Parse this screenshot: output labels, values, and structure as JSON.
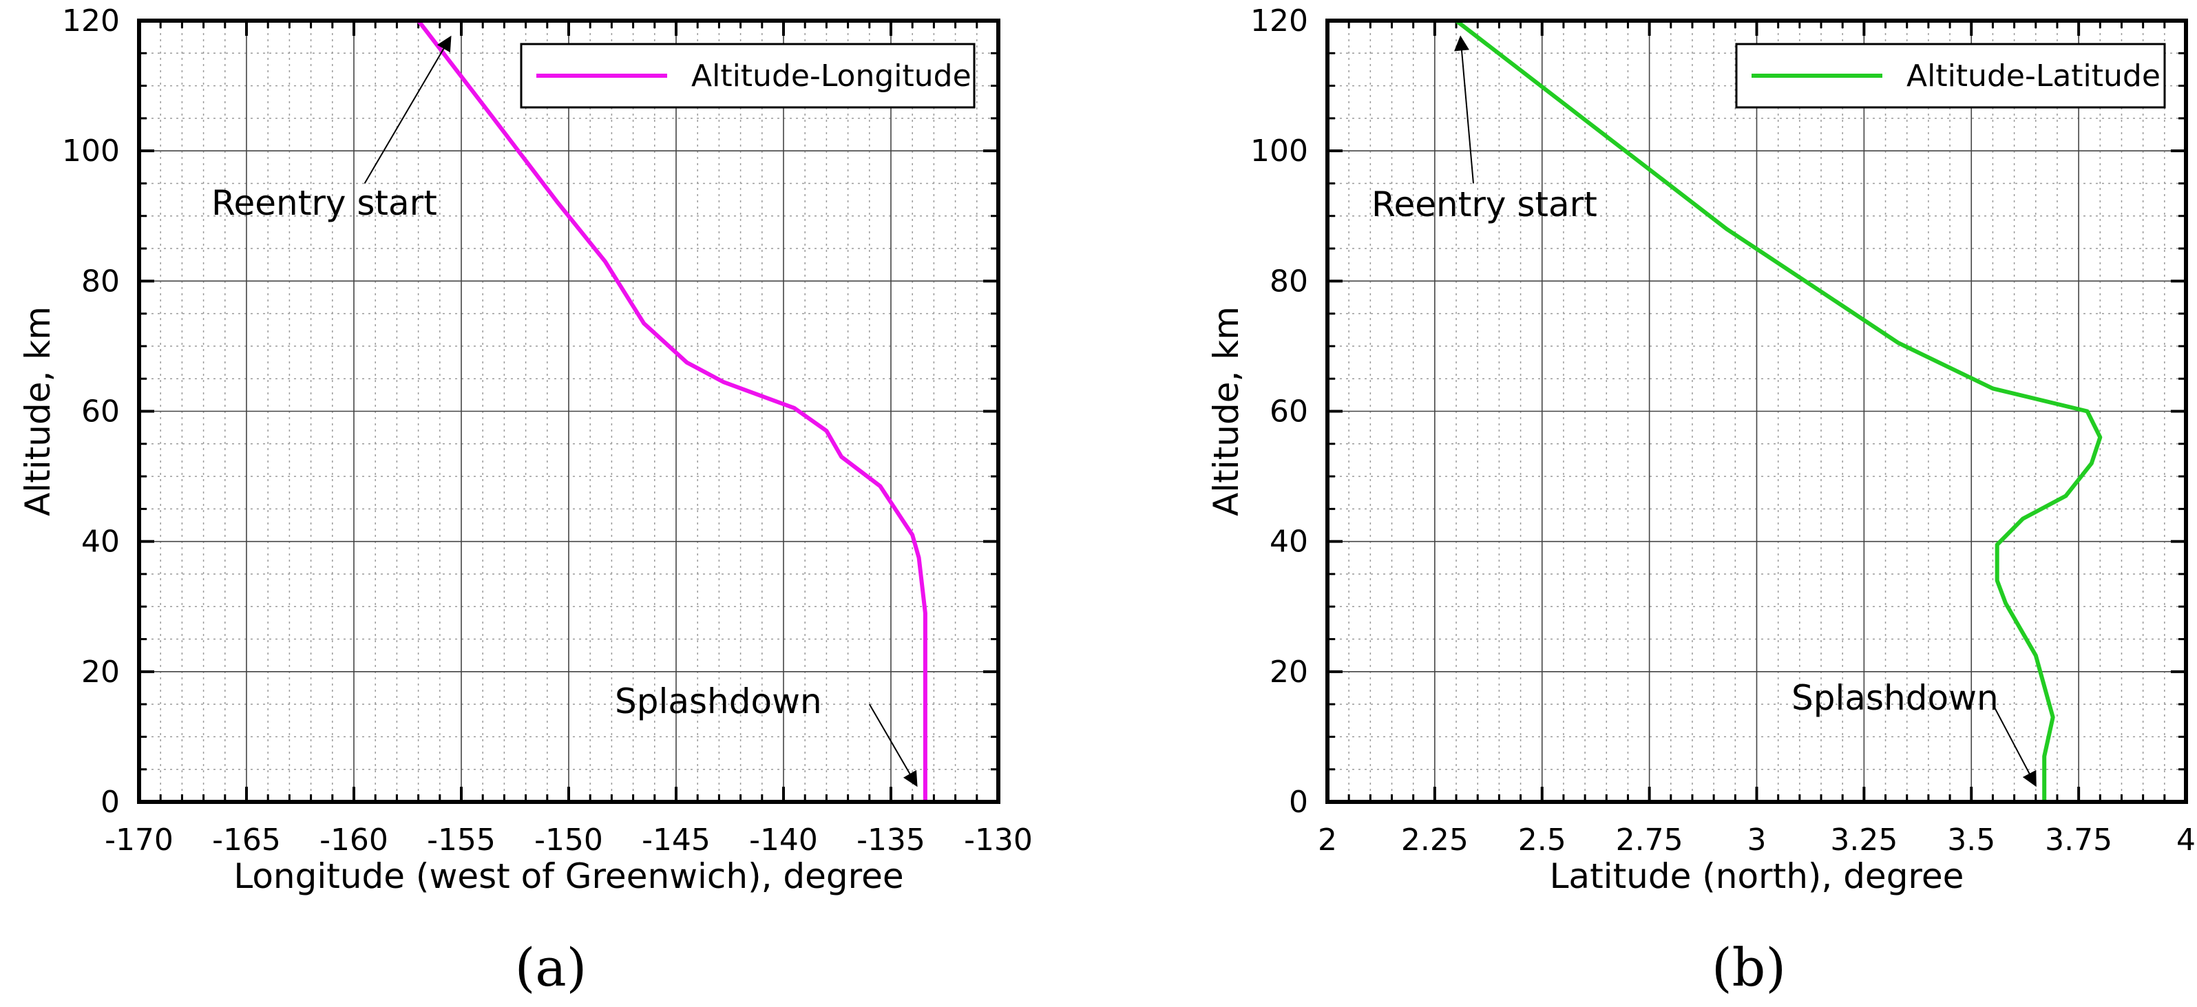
{
  "chart_data": [
    {
      "type": "line",
      "panel_label": "(a)",
      "xlabel": "Longitude (west of Greenwich), degree",
      "ylabel": "Altitude, km",
      "xlim": [
        -170,
        -130
      ],
      "ylim": [
        0,
        120
      ],
      "x_ticks": [
        -170,
        -165,
        -160,
        -155,
        -150,
        -145,
        -140,
        -135,
        -130
      ],
      "x_tick_labels": [
        "-170",
        "-165",
        "-160",
        "-155",
        "-150",
        "-145",
        "-140",
        "-135",
        "-130"
      ],
      "y_ticks": [
        0,
        20,
        40,
        60,
        80,
        100,
        120
      ],
      "y_tick_labels": [
        "0",
        "20",
        "40",
        "60",
        "80",
        "100",
        "120"
      ],
      "x_minor_step": 1,
      "y_minor_step": 5,
      "grid": true,
      "legend_position": "top-right",
      "series": [
        {
          "name": "Altitude-Longitude",
          "color": "#ee11ee",
          "x": [
            -157.0,
            -153.5,
            -150.5,
            -148.3,
            -146.5,
            -144.5,
            -142.8,
            -139.5,
            -138.0,
            -137.3,
            -135.5,
            -134.8,
            -134.0,
            -133.7,
            -133.4,
            -133.4,
            -133.4
          ],
          "y": [
            120,
            105,
            92,
            83,
            73.5,
            67.5,
            64.5,
            60.5,
            57,
            53,
            48.5,
            45,
            41,
            37.5,
            29,
            15,
            0
          ]
        }
      ],
      "annotations": [
        {
          "text": "Reentry start",
          "arrow_to": [
            -155.5,
            117.5
          ],
          "arrow_from": [
            -159.5,
            95
          ]
        },
        {
          "text": "Splashdown",
          "arrow_to": [
            -133.8,
            2.5
          ],
          "arrow_from": [
            -136.0,
            15
          ]
        }
      ]
    },
    {
      "type": "line",
      "panel_label": "(b)",
      "xlabel": "Latitude (north), degree",
      "ylabel": "Altitude, km",
      "xlim": [
        2,
        4
      ],
      "ylim": [
        0,
        120
      ],
      "x_ticks": [
        2,
        2.25,
        2.5,
        2.75,
        3,
        3.25,
        3.5,
        3.75,
        4
      ],
      "x_tick_labels": [
        "2",
        "2.25",
        "2.5",
        "2.75",
        "3",
        "3.25",
        "3.5",
        "3.75",
        "4"
      ],
      "y_ticks": [
        0,
        20,
        40,
        60,
        80,
        100,
        120
      ],
      "y_tick_labels": [
        "0",
        "20",
        "40",
        "60",
        "80",
        "100",
        "120"
      ],
      "x_minor_step": 0.05,
      "y_minor_step": 5,
      "grid": true,
      "legend_position": "top-right",
      "series": [
        {
          "name": "Altitude-Latitude",
          "color": "#22cc22",
          "x": [
            2.3,
            2.93,
            3.33,
            3.55,
            3.77,
            3.8,
            3.78,
            3.72,
            3.62,
            3.56,
            3.56,
            3.58,
            3.65,
            3.69,
            3.67,
            3.67
          ],
          "y": [
            120,
            88,
            70.5,
            63.5,
            60,
            56,
            52,
            47,
            43.5,
            39.5,
            34,
            30.5,
            22.5,
            13,
            7,
            0
          ]
        }
      ],
      "annotations": [
        {
          "text": "Reentry start",
          "arrow_to": [
            2.31,
            117.5
          ],
          "arrow_from": [
            2.34,
            95
          ]
        },
        {
          "text": "Splashdown",
          "arrow_to": [
            3.65,
            2.5
          ],
          "arrow_from": [
            3.55,
            15
          ]
        }
      ]
    }
  ]
}
